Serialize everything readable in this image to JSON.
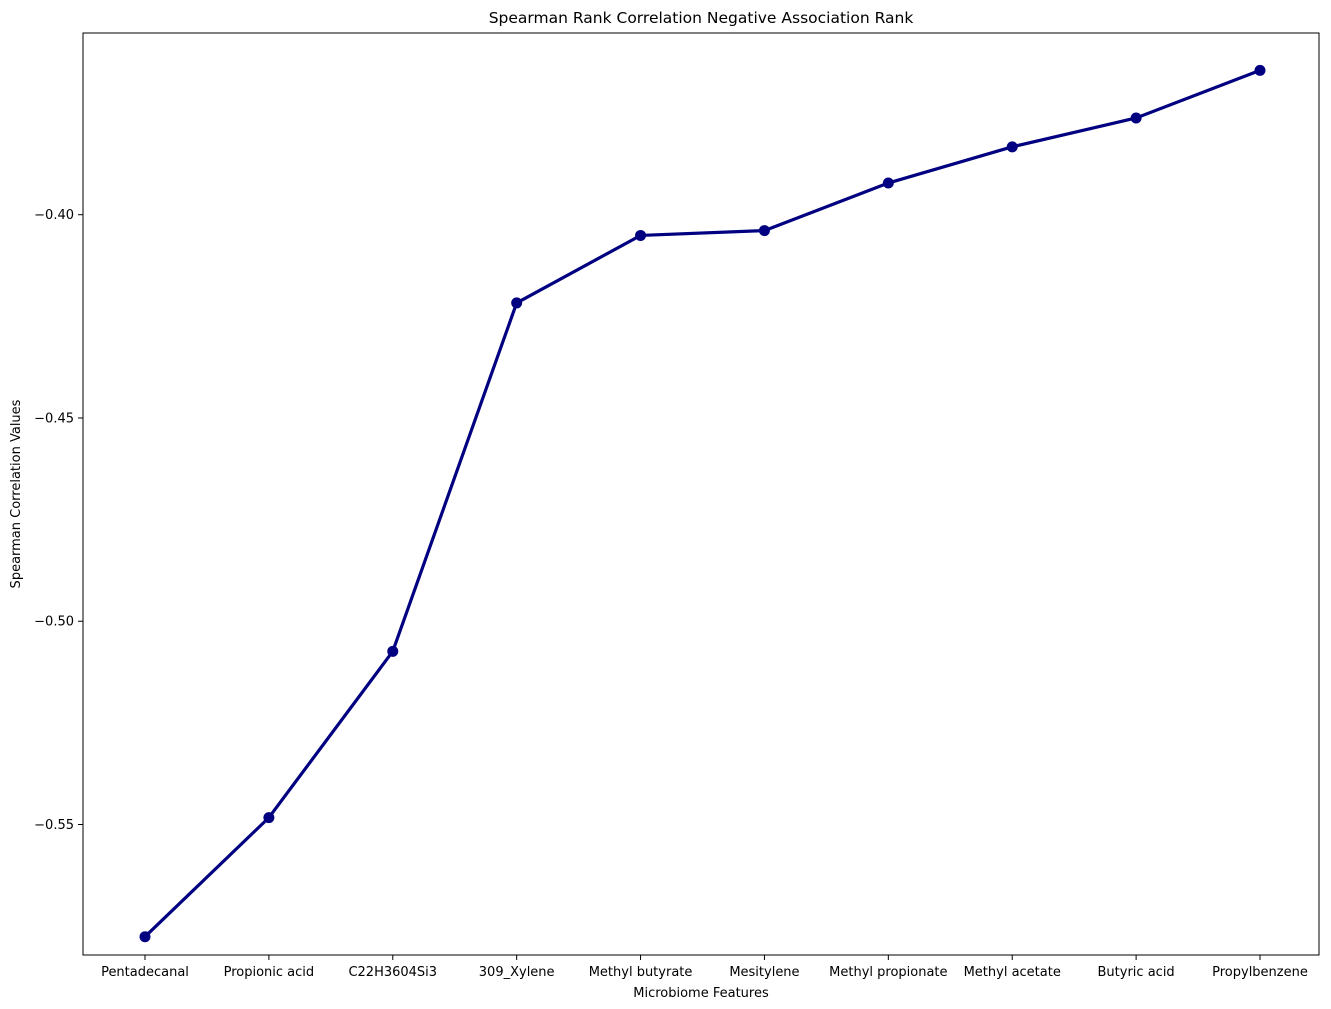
{
  "chart_data": {
    "type": "line",
    "title": "Spearman Rank Correlation Negative Association Rank",
    "xlabel": "Microbiome Features",
    "ylabel": "Spearman Correlation Values",
    "categories": [
      "Pentadecanal",
      "Propionic acid",
      "C22H3604Si3",
      "309_Xylene",
      "Methyl butyrate",
      "Mesitylene",
      "Methyl propionate",
      "Methyl acetate",
      "Butyric acid",
      "Propylbenzene"
    ],
    "series": [
      {
        "values": [
          -0.5776,
          -0.5483,
          -0.5074,
          -0.4217,
          -0.4051,
          -0.4039,
          -0.3922,
          -0.3833,
          -0.3762,
          -0.3645
        ]
      }
    ],
    "ylim": [
      -0.5821,
      -0.3553
    ],
    "yticks": [
      -0.55,
      -0.5,
      -0.45,
      -0.4
    ],
    "ytick_labels": [
      "−0.55",
      "−0.50",
      "−0.45",
      "−0.40"
    ],
    "grid": false,
    "legend": "none",
    "colors": {
      "line": "#000080",
      "marker": "#000080",
      "axes": "#000000",
      "background": "#ffffff"
    }
  }
}
